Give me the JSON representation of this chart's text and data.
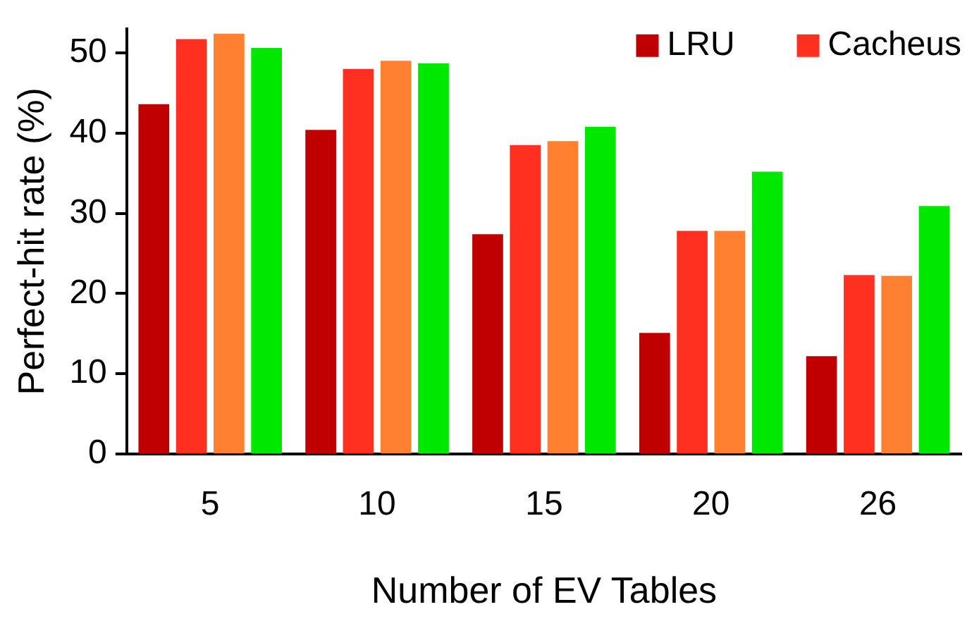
{
  "chart_data": {
    "type": "bar",
    "xlabel": "Number of EV Tables",
    "ylabel": "Perfect-hit rate (%)",
    "categories": [
      "5",
      "10",
      "15",
      "20",
      "26"
    ],
    "series": [
      {
        "name": "LRU",
        "color": "#c00000",
        "values": [
          43.6,
          40.4,
          27.4,
          15.1,
          12.2
        ]
      },
      {
        "name": "Cacheus",
        "color": "#ff3020",
        "values": [
          51.7,
          48.0,
          38.5,
          27.8,
          22.3
        ]
      },
      {
        "color": "#ff8030",
        "values": [
          52.4,
          49.0,
          39.0,
          27.8,
          22.2
        ]
      },
      {
        "color": "#00e800",
        "values": [
          50.6,
          48.7,
          40.8,
          35.2,
          30.9
        ]
      }
    ],
    "ylim": [
      0,
      53
    ],
    "yticks": [
      0,
      10,
      20,
      30,
      40,
      50
    ],
    "grid": false,
    "legend": "top right"
  }
}
